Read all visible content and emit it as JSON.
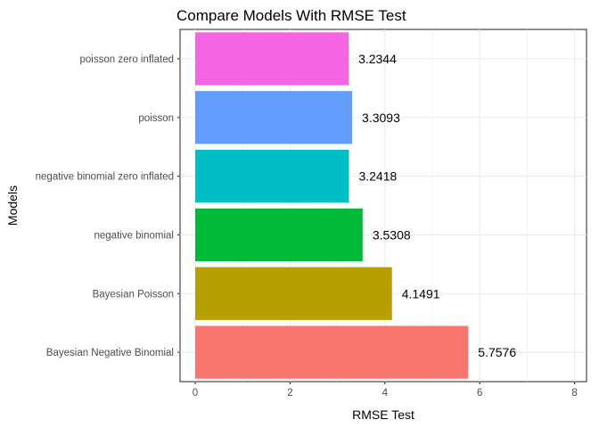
{
  "chart_data": {
    "type": "bar",
    "orientation": "horizontal",
    "title": "Compare Models With RMSE Test",
    "xlabel": "RMSE Test",
    "ylabel": "Models",
    "xlim": [
      0,
      8
    ],
    "xticks": [
      0,
      2,
      4,
      6,
      8
    ],
    "grid": true,
    "legend": "none",
    "categories": [
      "Bayesian Negative Binomial",
      "Bayesian Poisson",
      "negative binomial",
      "negative binomial zero inflated",
      "poisson",
      "poisson zero inflated"
    ],
    "values": [
      5.7576,
      4.1491,
      3.5308,
      3.2418,
      3.3093,
      3.2344
    ],
    "value_labels": [
      "5.7576",
      "4.1491",
      "3.5308",
      "3.2418",
      "3.3093",
      "3.2344"
    ],
    "colors": [
      "#F8766D",
      "#B79F00",
      "#00BA38",
      "#00BFC4",
      "#619CFF",
      "#F564E3"
    ]
  }
}
